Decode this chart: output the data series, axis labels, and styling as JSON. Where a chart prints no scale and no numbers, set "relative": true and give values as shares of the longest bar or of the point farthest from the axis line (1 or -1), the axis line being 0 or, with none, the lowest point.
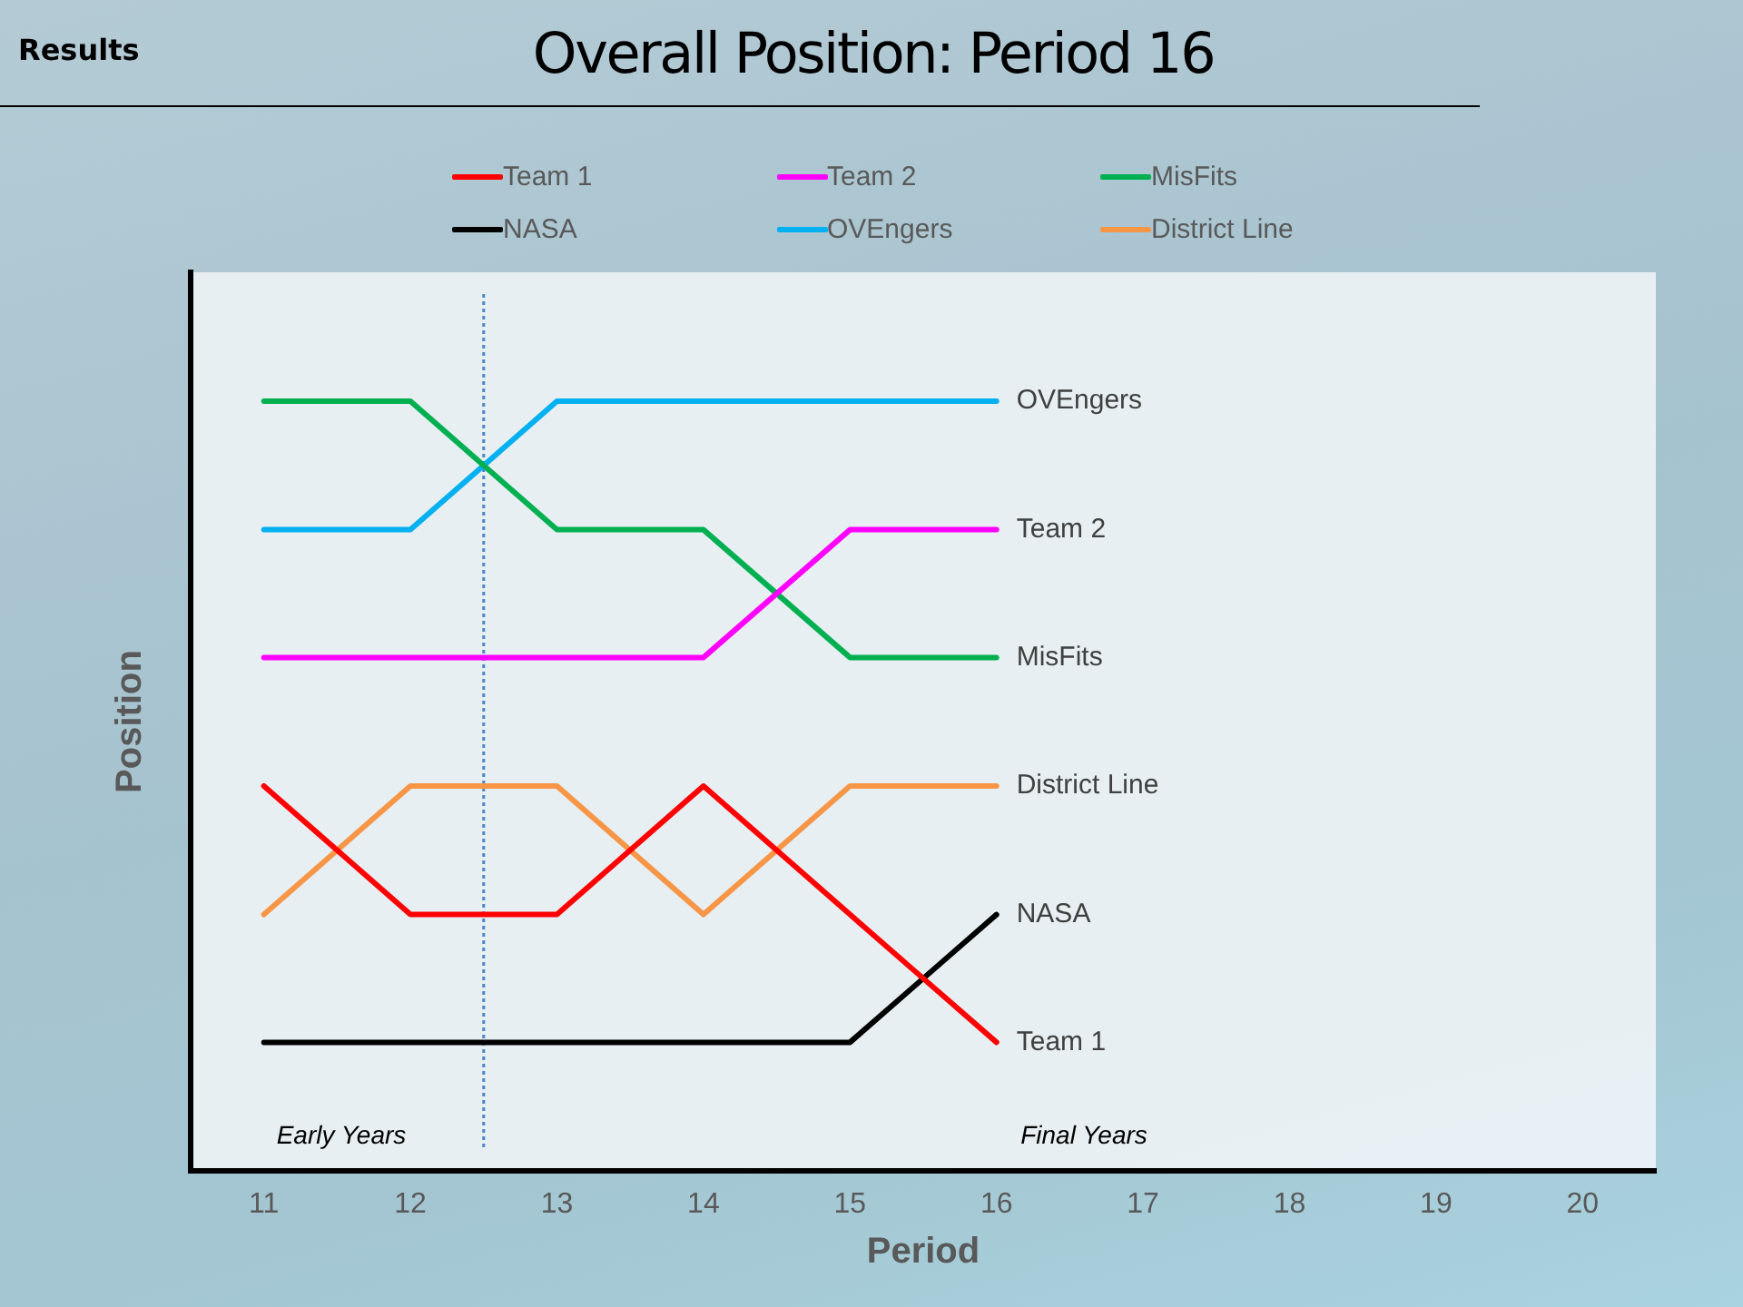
{
  "chart_data": {
    "type": "line",
    "title": "Overall Position: Period 16",
    "subtitle": "Results",
    "xlabel": "Period",
    "ylabel": "Position",
    "x": [
      11,
      12,
      13,
      14,
      15,
      16
    ],
    "xlim": [
      10.5,
      20.5
    ],
    "xticks": [
      11,
      12,
      13,
      14,
      15,
      16,
      17,
      18,
      19,
      20
    ],
    "relative": true,
    "tick_labels": "x",
    "grid": false,
    "legend": "top",
    "series": [
      {
        "name": "Team 1",
        "color": "#ff0000",
        "values": [
          0.5,
          0.333,
          0.333,
          0.5,
          0.333,
          0.167
        ]
      },
      {
        "name": "Team 2",
        "color": "#ff00ff",
        "values": [
          0.667,
          0.667,
          0.667,
          0.667,
          0.833,
          0.833
        ]
      },
      {
        "name": "MisFits",
        "color": "#00b050",
        "values": [
          1,
          1,
          0.833,
          0.833,
          0.667,
          0.667
        ]
      },
      {
        "name": "NASA",
        "color": "#000000",
        "values": [
          0.167,
          0.167,
          0.167,
          0.167,
          0.167,
          0.333
        ]
      },
      {
        "name": "OVEngers",
        "color": "#00b0f0",
        "values": [
          0.833,
          0.833,
          1,
          1,
          1,
          1
        ]
      },
      {
        "name": "District Line",
        "color": "#f79646",
        "values": [
          0.333,
          0.5,
          0.5,
          0.333,
          0.5,
          0.5
        ]
      }
    ],
    "ref_lines": [
      {
        "axis": "x",
        "value": 12.5,
        "color": "#4a86c8",
        "line_style": "dotted"
      }
    ],
    "annotations": [
      "Early Years",
      "Final Years"
    ]
  }
}
